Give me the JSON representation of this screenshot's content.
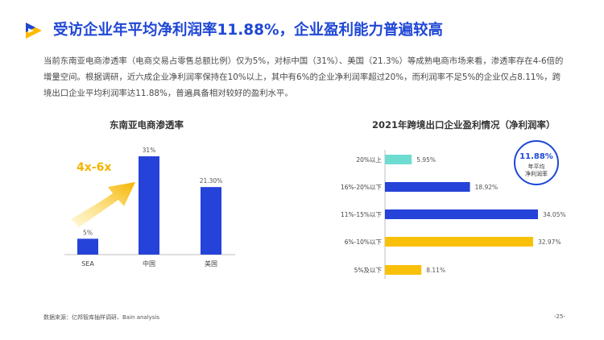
{
  "header": {
    "title": "受访企业年平均净利润率11.88%，企业盈利能力普遍较高"
  },
  "body_text": "当前东南亚电商渗透率（电商交易占零售总额比例）仅为5%，对标中国（31%）、美国（21.3%）等成熟电商市场来看，渗透率存在4-6倍的增量空间。根据调研，近六成企业净利润率保持在10%以上，其中有6%的企业净利润率超过20%，而利润率不足5%的企业仅占8.11%，跨境出口企业平均利润率达11.88%，普遍具备相对较好的盈利水平。",
  "colors": {
    "brand_blue": "#1f47d6",
    "bar_blue": "#2543d8",
    "teal": "#6fdcd2",
    "yellow": "#f9c00a",
    "arrow_yellow": "#f5b400"
  },
  "arrow_label": "4x-6x",
  "badge": {
    "value": "11.88%",
    "line1": "年平均",
    "line2": "净利润率"
  },
  "chart_data": [
    {
      "type": "bar",
      "title": "东南亚电商渗透率",
      "categories": [
        "SEA",
        "中国",
        "美国"
      ],
      "values": [
        5,
        31,
        21.3
      ],
      "data_labels": [
        "5%",
        "31%",
        "21.30%"
      ],
      "colors": [
        "#2543d8",
        "#2543d8",
        "#2543d8"
      ],
      "ylim": [
        0,
        31
      ],
      "grid": false
    },
    {
      "type": "bar",
      "orientation": "horizontal",
      "title": "2021年跨境出口企业盈利情况（净利润率）",
      "categories": [
        "20%以上",
        "16%-20%以下",
        "11%-15%以下",
        "6%-10%以下",
        "5%及以下"
      ],
      "values": [
        5.95,
        18.92,
        34.05,
        32.97,
        8.11
      ],
      "data_labels": [
        "5.95%",
        "18.92%",
        "34.05%",
        "32.97%",
        "8.11%"
      ],
      "colors": [
        "#6fdcd2",
        "#2543d8",
        "#2543d8",
        "#f9c00a",
        "#f9c00a"
      ],
      "xlim": [
        0,
        34.05
      ],
      "grid": false
    }
  ],
  "footer": {
    "source": "数据来源：亿邦智库抽样调研、Bain analysis",
    "page": "-25-"
  }
}
